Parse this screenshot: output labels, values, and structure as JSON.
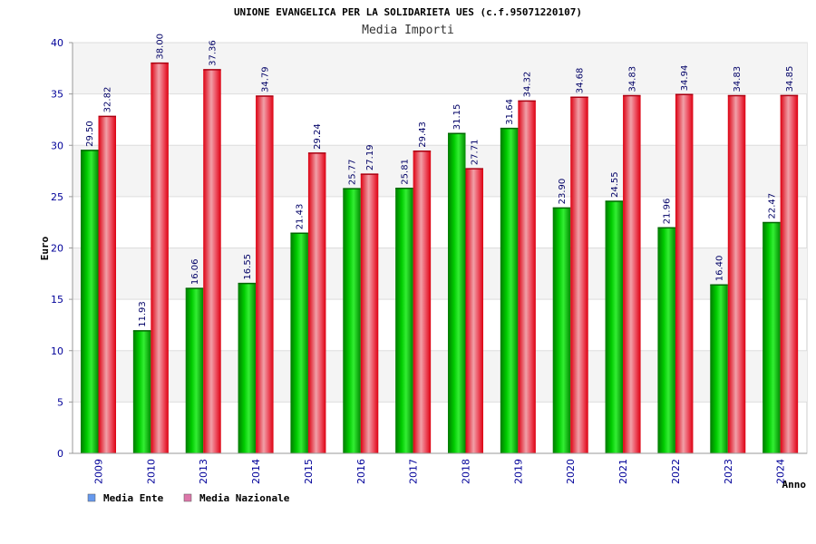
{
  "chart_data": {
    "type": "bar",
    "title": "UNIONE EVANGELICA PER LA SOLIDARIETA UES (c.f.95071220107)",
    "subtitle": "Media Importi",
    "xlabel": "Anno",
    "ylabel": "Euro",
    "ylim": [
      0,
      40
    ],
    "yticks": [
      0,
      5,
      10,
      15,
      20,
      25,
      30,
      35,
      40
    ],
    "grid": true,
    "legend_position": "bottom-left",
    "categories": [
      "2009",
      "2010",
      "2013",
      "2014",
      "2015",
      "2016",
      "2017",
      "2018",
      "2019",
      "2020",
      "2021",
      "2022",
      "2023",
      "2024"
    ],
    "series": [
      {
        "name": "Media Ente",
        "color": "#00aa00",
        "legend_color": "#6699ee",
        "values": [
          29.5,
          11.93,
          16.06,
          16.55,
          21.43,
          25.77,
          25.81,
          31.15,
          31.64,
          23.9,
          24.55,
          21.96,
          16.4,
          22.47
        ],
        "labels": [
          "29.50",
          "11.93",
          "16.06",
          "16.55",
          "21.43",
          "25.77",
          "25.81",
          "31.15",
          "31.64",
          "23.90",
          "24.55",
          "21.96",
          "16.40",
          "22.47"
        ]
      },
      {
        "name": "Media Nazionale",
        "color": "#ee1122",
        "legend_color": "#dd77aa",
        "values": [
          32.82,
          38.0,
          37.36,
          34.79,
          29.24,
          27.19,
          29.43,
          27.71,
          34.32,
          34.68,
          34.83,
          34.94,
          34.83,
          34.85
        ],
        "labels": [
          "32.82",
          "38.00",
          "37.36",
          "34.79",
          "29.24",
          "27.19",
          "29.43",
          "27.71",
          "34.32",
          "34.68",
          "34.83",
          "34.94",
          "34.83",
          "34.85"
        ]
      }
    ]
  }
}
